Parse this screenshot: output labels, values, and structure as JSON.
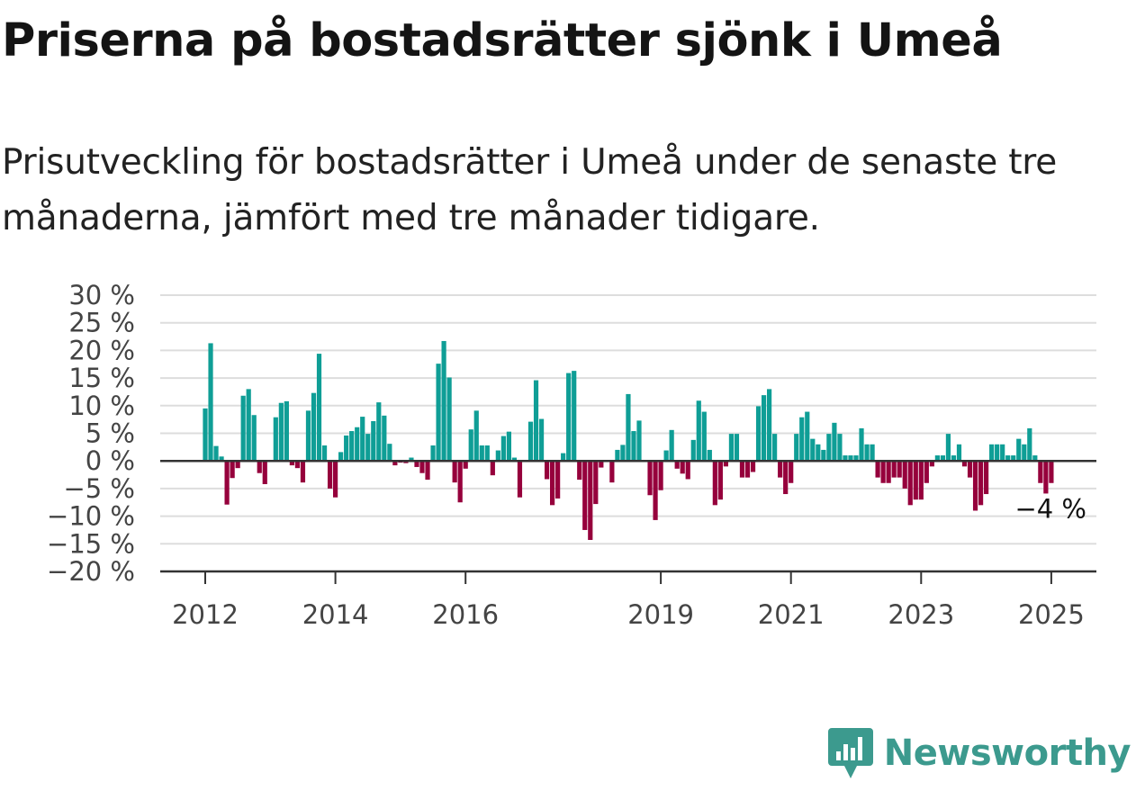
{
  "title": "Priserna på bostadsrätter sjönk i Umeå",
  "subtitle": "Prisutveckling för bostadsrätter i Umeå under de senaste tre månaderna, jämfört med tre månader tidigare.",
  "brand": {
    "name": "Newsworthy",
    "icon": "newsworthy-logo-icon"
  },
  "colors": {
    "positive": "#0f9e96",
    "negative": "#96003c",
    "grid": "#dddddd",
    "axis": "#333333"
  },
  "chart_data": {
    "type": "bar",
    "x_unit": "month",
    "start": "2012-01",
    "end": "2025-01",
    "ylim": [
      -20,
      30
    ],
    "yticks": [
      30,
      25,
      20,
      15,
      10,
      5,
      0,
      -5,
      -10,
      -15,
      -20
    ],
    "ytick_labels": [
      "30 %",
      "25 %",
      "20 %",
      "15 %",
      "10 %",
      "5 %",
      "0 %",
      "−5 %",
      "−10 %",
      "−15 %",
      "−20 %"
    ],
    "xticks": [
      "2012",
      "2014",
      "2016",
      "2019",
      "2021",
      "2023",
      "2025"
    ],
    "grid": true,
    "last_value_label": "−4 %",
    "values": [
      9.5,
      21.3,
      2.7,
      0.8,
      -7.9,
      -3.1,
      -1.3,
      11.8,
      13.0,
      8.3,
      -2.2,
      -4.2,
      0.0,
      7.9,
      10.5,
      10.8,
      -0.8,
      -1.3,
      -3.9,
      9.1,
      12.3,
      19.4,
      2.8,
      -5.0,
      -6.6,
      1.6,
      4.6,
      5.4,
      6.1,
      8.0,
      4.9,
      7.2,
      10.6,
      8.2,
      3.1,
      -0.8,
      -0.3,
      -0.4,
      0.6,
      -1.1,
      -2.2,
      -3.4,
      2.8,
      17.6,
      21.7,
      15.1,
      -3.9,
      -7.5,
      -1.4,
      5.7,
      9.1,
      2.8,
      2.8,
      -2.6,
      1.9,
      4.5,
      5.3,
      0.6,
      -6.6,
      0.0,
      7.1,
      14.6,
      7.6,
      -3.3,
      -8.0,
      -6.8,
      1.4,
      15.9,
      16.3,
      -3.4,
      -12.5,
      -14.3,
      -7.8,
      -1.2,
      0.0,
      -3.9,
      2.0,
      2.9,
      12.1,
      5.4,
      7.3,
      0.0,
      -6.2,
      -10.7,
      -5.3,
      1.9,
      5.6,
      -1.4,
      -2.3,
      -3.3,
      3.8,
      10.9,
      8.9,
      2.0,
      -8.0,
      -7.0,
      -1.0,
      4.9,
      4.9,
      -3.0,
      -3.0,
      -2.0,
      9.9,
      11.9,
      13.0,
      4.9,
      -3.0,
      -6.0,
      -4.0,
      4.9,
      7.9,
      8.9,
      4.0,
      3.0,
      2.0,
      4.9,
      6.9,
      4.9,
      1.0,
      1.0,
      1.0,
      5.9,
      3.0,
      3.0,
      -3.0,
      -4.0,
      -4.0,
      -3.0,
      -3.0,
      -5.0,
      -8.0,
      -7.0,
      -7.0,
      -4.0,
      -1.0,
      1.0,
      1.0,
      4.9,
      1.0,
      3.0,
      -1.0,
      -3.0,
      -9.0,
      -8.0,
      -6.0,
      3.0,
      3.0,
      3.0,
      1.0,
      1.0,
      4.0,
      3.0,
      5.9,
      1.0,
      -4.0,
      -5.9,
      -4.0
    ]
  }
}
